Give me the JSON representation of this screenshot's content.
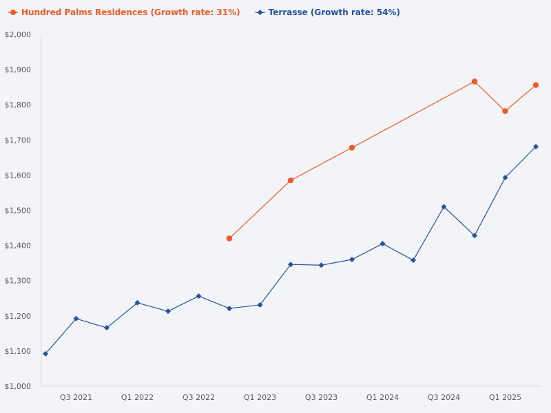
{
  "chart_data": {
    "type": "line",
    "title": "",
    "xlabel": "",
    "ylabel": "",
    "ylim": [
      1000,
      2000
    ],
    "y_ticks": [
      "$1,000",
      "$1,100",
      "$1,200",
      "$1,300",
      "$1,400",
      "$1,500",
      "$1,600",
      "$1,700",
      "$1,800",
      "$1,900",
      "$2,000"
    ],
    "y_tick_values": [
      1000,
      1100,
      1200,
      1300,
      1400,
      1500,
      1600,
      1700,
      1800,
      1900,
      2000
    ],
    "x": [
      "Q2 2021",
      "Q3 2021",
      "Q4 2021",
      "Q1 2022",
      "Q2 2022",
      "Q3 2022",
      "Q4 2022",
      "Q1 2023",
      "Q2 2023",
      "Q3 2023",
      "Q4 2023",
      "Q1 2024",
      "Q2 2024",
      "Q3 2024",
      "Q4 2024",
      "Q1 2025",
      "Q2 2025"
    ],
    "x_tick_labels": [
      {
        "index": 1,
        "label": "Q3 2021"
      },
      {
        "index": 3,
        "label": "Q1 2022"
      },
      {
        "index": 5,
        "label": "Q3 2022"
      },
      {
        "index": 7,
        "label": "Q1 2023"
      },
      {
        "index": 9,
        "label": "Q3 2023"
      },
      {
        "index": 11,
        "label": "Q1 2024"
      },
      {
        "index": 13,
        "label": "Q3 2024"
      },
      {
        "index": 15,
        "label": "Q1 2025"
      }
    ],
    "legend_position": "top-left",
    "series": [
      {
        "name": "Hundred Palms Residences (Growth rate: 31%)",
        "color": "#f05a28",
        "marker": "circle",
        "values": [
          null,
          null,
          null,
          null,
          null,
          null,
          1420,
          null,
          1585,
          null,
          1678,
          null,
          null,
          null,
          1866,
          1782,
          1856
        ]
      },
      {
        "name": "Terrasse (Growth rate: 54%)",
        "color": "#2452a0",
        "marker": "diamond",
        "values": [
          1092,
          1192,
          1166,
          1237,
          1213,
          1256,
          1221,
          1231,
          1346,
          1344,
          1360,
          1405,
          1358,
          1510,
          1428,
          1593,
          1681
        ]
      }
    ]
  }
}
